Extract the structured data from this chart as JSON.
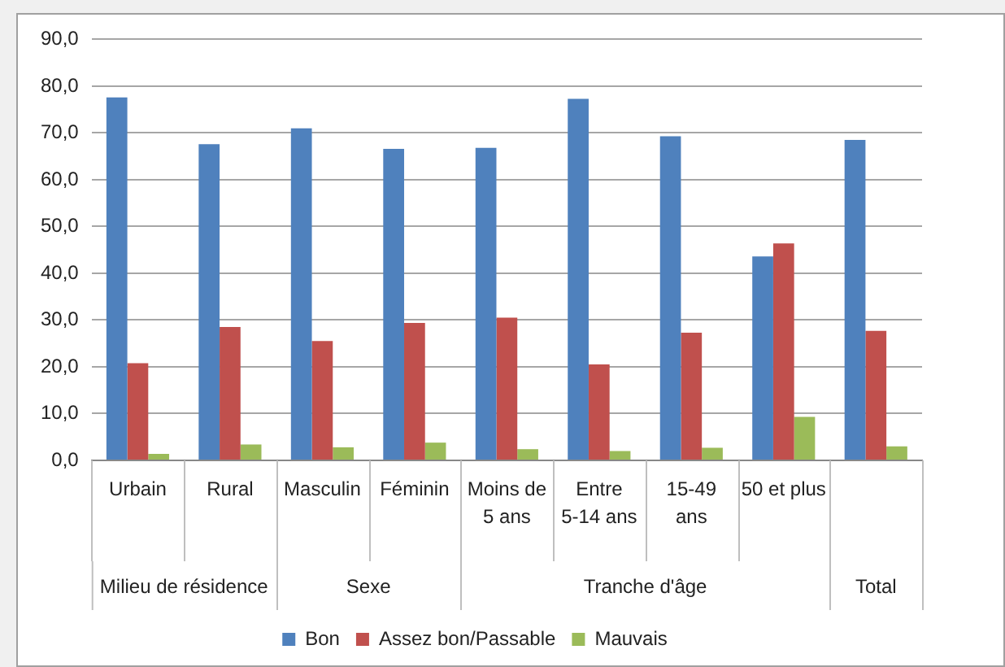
{
  "chart_data": {
    "type": "bar",
    "categories": [
      "Urbain",
      "Rural",
      "Masculin",
      "Féminin",
      "Moins de 5 ans",
      "Entre 5-14 ans",
      "15-49 ans",
      "50 et plus",
      null
    ],
    "series": [
      {
        "name": "Bon",
        "color": "#4f81bd",
        "values": [
          77.6,
          67.6,
          71.0,
          66.6,
          66.8,
          77.3,
          69.3,
          43.6,
          68.5
        ]
      },
      {
        "name": "Assez bon/Passable",
        "color": "#c0504d",
        "values": [
          20.8,
          28.5,
          25.5,
          29.4,
          30.5,
          20.5,
          27.3,
          46.4,
          27.7
        ]
      },
      {
        "name": "Mauvais",
        "color": "#9bbb59",
        "values": [
          1.4,
          3.4,
          2.8,
          3.8,
          2.4,
          2.0,
          2.7,
          9.3,
          3.0
        ]
      }
    ],
    "ylim": [
      0,
      90
    ],
    "yticks": [
      {
        "value": 0,
        "label": "0,0"
      },
      {
        "value": 10,
        "label": "10,0"
      },
      {
        "value": 20,
        "label": "20,0"
      },
      {
        "value": 30,
        "label": "30,0"
      },
      {
        "value": 40,
        "label": "40,0"
      },
      {
        "value": 50,
        "label": "50,0"
      },
      {
        "value": 60,
        "label": "60,0"
      },
      {
        "value": 70,
        "label": "70,0"
      },
      {
        "value": 80,
        "label": "80,0"
      },
      {
        "value": 90,
        "label": "90,0"
      }
    ],
    "annotations": [
      "Milieu de résidence",
      "Sexe",
      "Tranche d'âge",
      "Total"
    ],
    "grid": "y",
    "legend": "bottom"
  }
}
